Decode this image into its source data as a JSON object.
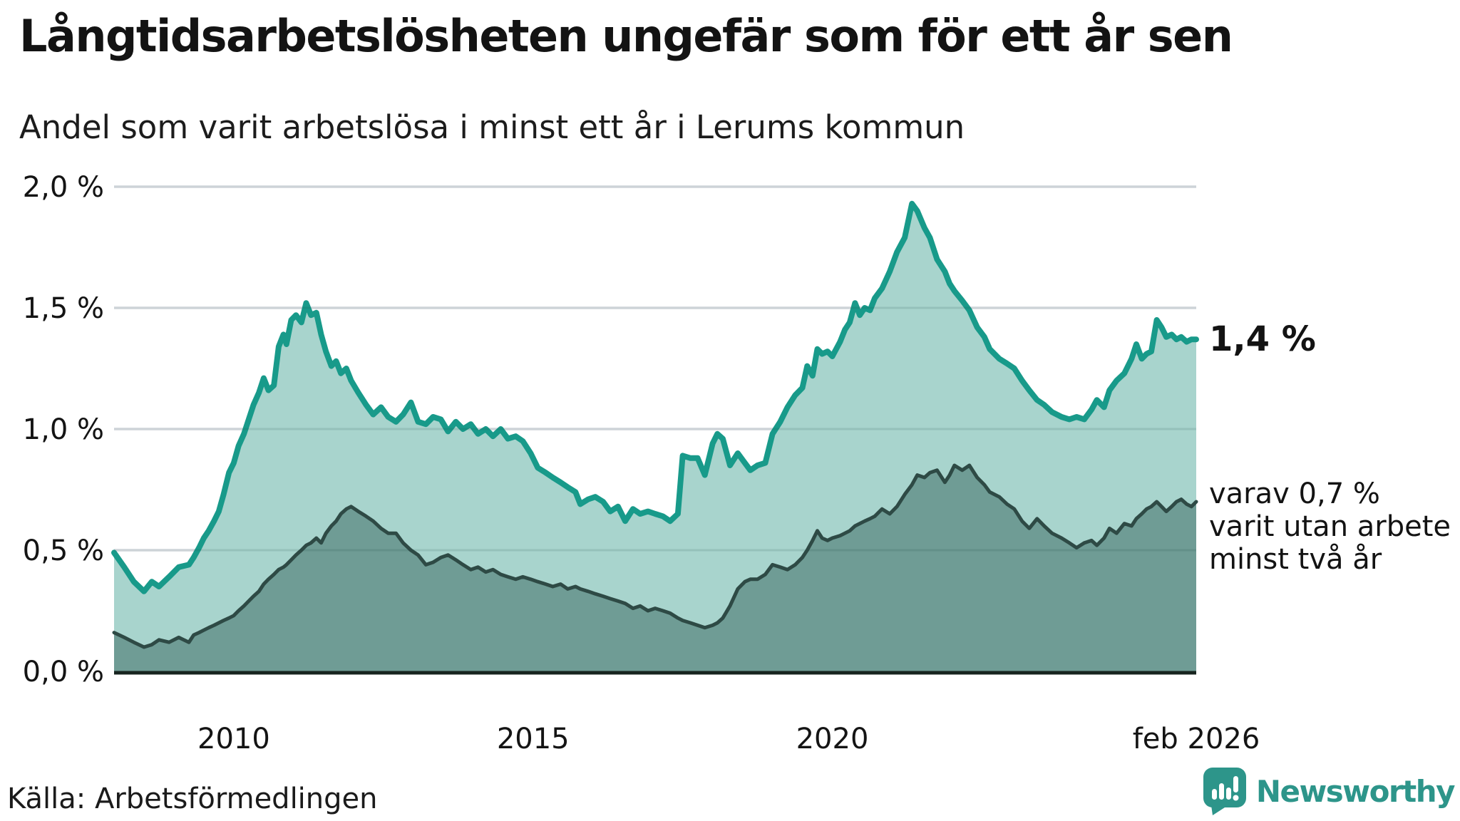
{
  "chart_data": {
    "type": "area",
    "title": "Långtidsarbetslösheten ungefär som för ett år sen",
    "subtitle": "Andel som varit arbetslösa i minst ett år i Lerums kommun",
    "grid": "horizontal",
    "legend_position": "none",
    "ylim": [
      0,
      2.0
    ],
    "yticks": [
      {
        "value": 0.0,
        "label": "0,0 %"
      },
      {
        "value": 0.5,
        "label": "0,5 %"
      },
      {
        "value": 1.0,
        "label": "1,0 %"
      },
      {
        "value": 1.5,
        "label": "1,5 %"
      },
      {
        "value": 2.0,
        "label": "2,0 %"
      }
    ],
    "xticks": [
      {
        "year": 2010,
        "label": "2010"
      },
      {
        "year": 2015,
        "label": "2015"
      },
      {
        "year": 2020,
        "label": "2020"
      },
      {
        "year": 2026.08,
        "label": "feb 2026"
      }
    ],
    "x_years": [
      2008.0,
      2008.17,
      2008.33,
      2008.5,
      2008.63,
      2008.75,
      2008.92,
      2009.08,
      2009.25,
      2009.33,
      2009.42,
      2009.5,
      2009.58,
      2009.67,
      2009.75,
      2009.83,
      2009.92,
      2010.0,
      2010.08,
      2010.17,
      2010.25,
      2010.33,
      2010.42,
      2010.5,
      2010.58,
      2010.67,
      2010.75,
      2010.83,
      2010.88,
      2010.96,
      2011.04,
      2011.13,
      2011.21,
      2011.29,
      2011.38,
      2011.46,
      2011.54,
      2011.63,
      2011.71,
      2011.79,
      2011.88,
      2011.96,
      2012.08,
      2012.21,
      2012.33,
      2012.46,
      2012.58,
      2012.71,
      2012.83,
      2012.96,
      2013.08,
      2013.21,
      2013.33,
      2013.46,
      2013.58,
      2013.71,
      2013.83,
      2013.96,
      2014.08,
      2014.21,
      2014.33,
      2014.46,
      2014.58,
      2014.71,
      2014.83,
      2014.96,
      2015.08,
      2015.21,
      2015.33,
      2015.46,
      2015.58,
      2015.71,
      2015.79,
      2015.92,
      2016.04,
      2016.17,
      2016.29,
      2016.42,
      2016.54,
      2016.67,
      2016.79,
      2016.92,
      2017.04,
      2017.17,
      2017.29,
      2017.42,
      2017.5,
      2017.63,
      2017.75,
      2017.87,
      2018.0,
      2018.08,
      2018.17,
      2018.29,
      2018.42,
      2018.54,
      2018.63,
      2018.75,
      2018.88,
      2019.0,
      2019.13,
      2019.25,
      2019.38,
      2019.5,
      2019.58,
      2019.67,
      2019.75,
      2019.83,
      2019.92,
      2020.0,
      2020.13,
      2020.21,
      2020.29,
      2020.38,
      2020.46,
      2020.54,
      2020.63,
      2020.71,
      2020.83,
      2020.96,
      2021.08,
      2021.21,
      2021.33,
      2021.42,
      2021.54,
      2021.63,
      2021.75,
      2021.88,
      2021.96,
      2022.04,
      2022.17,
      2022.29,
      2022.42,
      2022.54,
      2022.63,
      2022.79,
      2022.92,
      2023.04,
      2023.17,
      2023.29,
      2023.42,
      2023.54,
      2023.67,
      2023.83,
      2023.96,
      2024.08,
      2024.21,
      2024.33,
      2024.42,
      2024.54,
      2024.63,
      2024.75,
      2024.88,
      2025.0,
      2025.08,
      2025.17,
      2025.25,
      2025.33,
      2025.42,
      2025.5,
      2025.58,
      2025.67,
      2025.75,
      2025.83,
      2025.92,
      2026.0,
      2026.08
    ],
    "series": [
      {
        "name": "Andel som varit arbetslösa i minst ett år",
        "line_color": "#189a8a",
        "fill_color": "#a8d4cd",
        "line_width": 8,
        "values": [
          0.49,
          0.43,
          0.37,
          0.33,
          0.37,
          0.35,
          0.39,
          0.43,
          0.44,
          0.47,
          0.51,
          0.55,
          0.58,
          0.62,
          0.66,
          0.73,
          0.82,
          0.86,
          0.93,
          0.98,
          1.04,
          1.1,
          1.15,
          1.21,
          1.16,
          1.18,
          1.34,
          1.39,
          1.35,
          1.45,
          1.47,
          1.44,
          1.52,
          1.47,
          1.48,
          1.39,
          1.32,
          1.26,
          1.28,
          1.23,
          1.25,
          1.2,
          1.15,
          1.1,
          1.06,
          1.09,
          1.05,
          1.03,
          1.06,
          1.11,
          1.03,
          1.02,
          1.05,
          1.04,
          0.99,
          1.03,
          1.0,
          1.02,
          0.98,
          1.0,
          0.97,
          1.0,
          0.96,
          0.97,
          0.95,
          0.9,
          0.84,
          0.82,
          0.8,
          0.78,
          0.76,
          0.74,
          0.69,
          0.71,
          0.72,
          0.7,
          0.66,
          0.68,
          0.62,
          0.67,
          0.65,
          0.66,
          0.65,
          0.64,
          0.62,
          0.65,
          0.89,
          0.88,
          0.88,
          0.81,
          0.94,
          0.98,
          0.96,
          0.85,
          0.9,
          0.86,
          0.83,
          0.85,
          0.86,
          0.98,
          1.03,
          1.09,
          1.14,
          1.17,
          1.26,
          1.22,
          1.33,
          1.31,
          1.32,
          1.3,
          1.36,
          1.41,
          1.44,
          1.52,
          1.47,
          1.5,
          1.49,
          1.54,
          1.58,
          1.65,
          1.73,
          1.79,
          1.93,
          1.9,
          1.83,
          1.79,
          1.7,
          1.65,
          1.6,
          1.57,
          1.53,
          1.49,
          1.42,
          1.38,
          1.33,
          1.29,
          1.27,
          1.25,
          1.2,
          1.16,
          1.12,
          1.1,
          1.07,
          1.05,
          1.04,
          1.05,
          1.04,
          1.08,
          1.12,
          1.09,
          1.16,
          1.2,
          1.23,
          1.29,
          1.35,
          1.29,
          1.31,
          1.32,
          1.45,
          1.42,
          1.38,
          1.39,
          1.37,
          1.38,
          1.36,
          1.37,
          1.37
        ]
      },
      {
        "name": "varav utan arbete minst två år",
        "line_color": "#2e4a45",
        "fill_color": "#6f9c95",
        "line_width": 5,
        "values": [
          0.16,
          0.14,
          0.12,
          0.1,
          0.11,
          0.13,
          0.12,
          0.14,
          0.12,
          0.15,
          0.16,
          0.17,
          0.18,
          0.19,
          0.2,
          0.21,
          0.22,
          0.23,
          0.25,
          0.27,
          0.29,
          0.31,
          0.33,
          0.36,
          0.38,
          0.4,
          0.42,
          0.43,
          0.44,
          0.46,
          0.48,
          0.5,
          0.52,
          0.53,
          0.55,
          0.53,
          0.57,
          0.6,
          0.62,
          0.65,
          0.67,
          0.68,
          0.66,
          0.64,
          0.62,
          0.59,
          0.57,
          0.57,
          0.53,
          0.5,
          0.48,
          0.44,
          0.45,
          0.47,
          0.48,
          0.46,
          0.44,
          0.42,
          0.43,
          0.41,
          0.42,
          0.4,
          0.39,
          0.38,
          0.39,
          0.38,
          0.37,
          0.36,
          0.35,
          0.36,
          0.34,
          0.35,
          0.34,
          0.33,
          0.32,
          0.31,
          0.3,
          0.29,
          0.28,
          0.26,
          0.27,
          0.25,
          0.26,
          0.25,
          0.24,
          0.22,
          0.21,
          0.2,
          0.19,
          0.18,
          0.19,
          0.2,
          0.22,
          0.27,
          0.34,
          0.37,
          0.38,
          0.38,
          0.4,
          0.44,
          0.43,
          0.42,
          0.44,
          0.47,
          0.5,
          0.54,
          0.58,
          0.55,
          0.54,
          0.55,
          0.56,
          0.57,
          0.58,
          0.6,
          0.61,
          0.62,
          0.63,
          0.64,
          0.67,
          0.65,
          0.68,
          0.73,
          0.77,
          0.81,
          0.8,
          0.82,
          0.83,
          0.78,
          0.81,
          0.85,
          0.83,
          0.85,
          0.8,
          0.77,
          0.74,
          0.72,
          0.69,
          0.67,
          0.62,
          0.59,
          0.63,
          0.6,
          0.57,
          0.55,
          0.53,
          0.51,
          0.53,
          0.54,
          0.52,
          0.55,
          0.59,
          0.57,
          0.61,
          0.6,
          0.63,
          0.65,
          0.67,
          0.68,
          0.7,
          0.68,
          0.66,
          0.68,
          0.7,
          0.71,
          0.69,
          0.68,
          0.7
        ]
      }
    ],
    "annotations": {
      "end_value_label": "1,4 %",
      "secondary_lines": [
        "varav 0,7 %",
        "varit utan arbete",
        "minst två år"
      ]
    }
  },
  "source": {
    "label": "Källa: Arbetsförmedlingen"
  },
  "logo": {
    "text": "Newsworthy",
    "icon": "bar-chart-speech-bubble-icon",
    "color": "#2d958a"
  },
  "colors": {
    "background": "#ffffff",
    "gridline": "#e8e8ee",
    "axis_line": "#17241f",
    "text": "#141414",
    "accent_teal": "#189a8a"
  }
}
